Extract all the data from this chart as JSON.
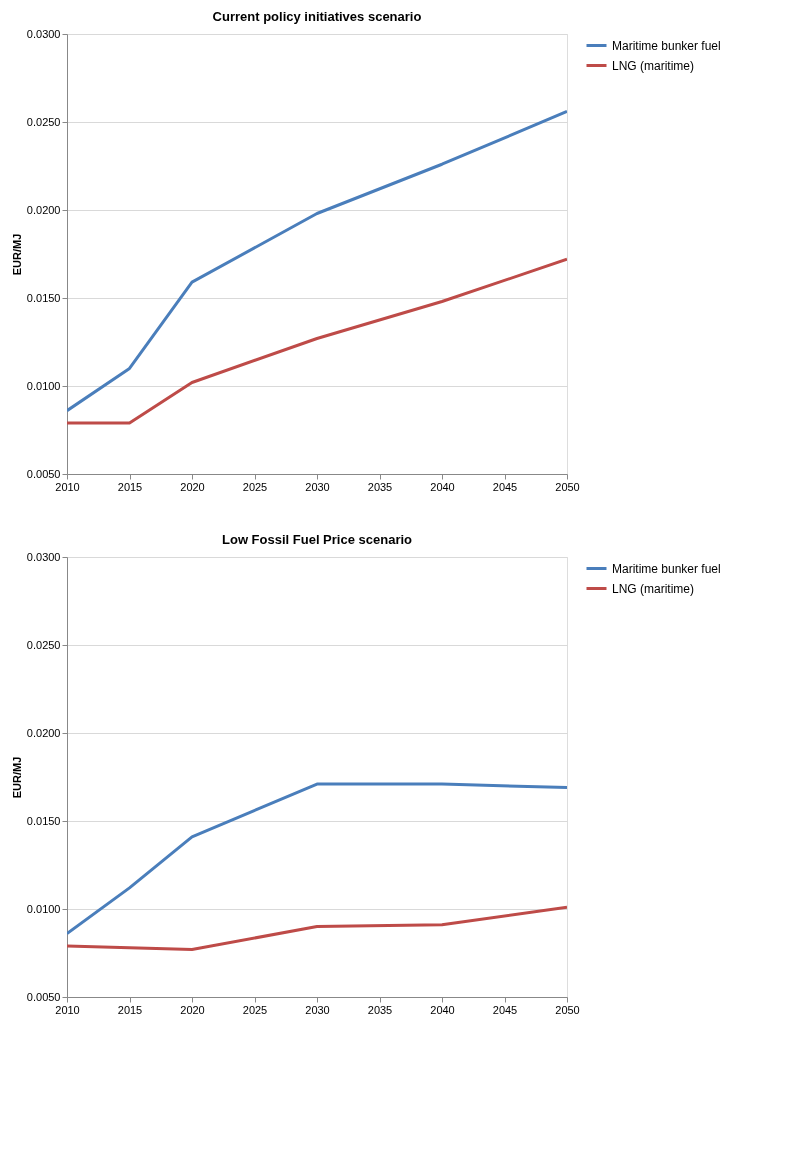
{
  "chart_data": [
    {
      "type": "line",
      "title": "Current policy initiatives scenario",
      "ylabel": "EUR/MJ",
      "x": [
        2010,
        2015,
        2020,
        2030,
        2040,
        2050
      ],
      "xlim": [
        2010,
        2050
      ],
      "xticks": [
        2010,
        2015,
        2020,
        2025,
        2030,
        2035,
        2040,
        2045,
        2050
      ],
      "ylim": [
        0.005,
        0.03
      ],
      "yticks": [
        {
          "value": 0.005,
          "label": "0.0050"
        },
        {
          "value": 0.01,
          "label": "0.0100"
        },
        {
          "value": 0.015,
          "label": "0.0150"
        },
        {
          "value": 0.02,
          "label": "0.0200"
        },
        {
          "value": 0.025,
          "label": "0.0250"
        },
        {
          "value": 0.03,
          "label": "0.0300"
        }
      ],
      "grid": "y",
      "legend": "right",
      "marker": "none",
      "line_style": "solid",
      "series": [
        {
          "name": "Maritime bunker fuel",
          "color": "#4a7ebb",
          "values": [
            0.0086,
            0.011,
            0.0159,
            0.0198,
            0.0226,
            0.0256
          ]
        },
        {
          "name": "LNG (maritime)",
          "color": "#be4b48",
          "values": [
            0.0079,
            0.0079,
            0.0102,
            0.0127,
            0.0148,
            0.0172
          ]
        }
      ]
    },
    {
      "type": "line",
      "title": "Low Fossil Fuel Price scenario",
      "ylabel": "EUR/MJ",
      "x": [
        2010,
        2015,
        2020,
        2030,
        2040,
        2050
      ],
      "xlim": [
        2010,
        2050
      ],
      "xticks": [
        2010,
        2015,
        2020,
        2025,
        2030,
        2035,
        2040,
        2045,
        2050
      ],
      "ylim": [
        0.005,
        0.03
      ],
      "yticks": [
        {
          "value": 0.005,
          "label": "0.0050"
        },
        {
          "value": 0.01,
          "label": "0.0100"
        },
        {
          "value": 0.015,
          "label": "0.0150"
        },
        {
          "value": 0.02,
          "label": "0.0200"
        },
        {
          "value": 0.025,
          "label": "0.0250"
        },
        {
          "value": 0.03,
          "label": "0.0300"
        }
      ],
      "grid": "y",
      "legend": "right",
      "marker": "none",
      "line_style": "solid",
      "series": [
        {
          "name": "Maritime bunker fuel",
          "color": "#4a7ebb",
          "values": [
            0.0086,
            0.0112,
            0.0141,
            0.0171,
            0.0171,
            0.0169
          ]
        },
        {
          "name": "LNG (maritime)",
          "color": "#be4b48",
          "values": [
            0.0079,
            0.0078,
            0.0077,
            0.009,
            0.0091,
            0.0101
          ]
        }
      ]
    }
  ]
}
